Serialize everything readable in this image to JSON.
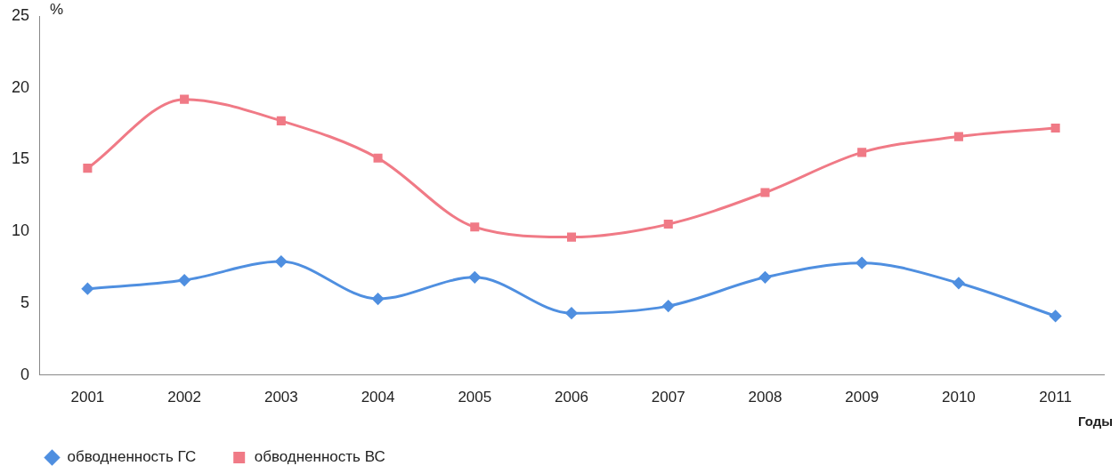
{
  "chart_data": {
    "type": "line",
    "xlabel": "Годы",
    "ylabel": "%",
    "categories": [
      "2001",
      "2002",
      "2003",
      "2004",
      "2005",
      "2006",
      "2007",
      "2008",
      "2009",
      "2010",
      "2011"
    ],
    "series": [
      {
        "name": "обводненность ГС",
        "color": "#4f8fe0",
        "marker": "diamond",
        "values": [
          6.0,
          6.6,
          7.9,
          5.3,
          6.8,
          4.3,
          4.8,
          6.8,
          7.8,
          6.4,
          4.1
        ]
      },
      {
        "name": "обводненность ВС",
        "color": "#f07a86",
        "marker": "square",
        "values": [
          14.4,
          19.2,
          17.7,
          15.1,
          10.3,
          9.6,
          10.5,
          12.7,
          15.5,
          16.6,
          17.2
        ]
      }
    ],
    "ylim": [
      0,
      25
    ],
    "yticks": [
      0,
      5,
      10,
      15,
      20,
      25
    ],
    "legend": "bottom left",
    "grid": false
  }
}
